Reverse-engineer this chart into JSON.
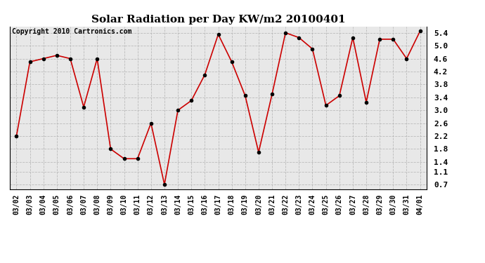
{
  "title": "Solar Radiation per Day KW/m2 20100401",
  "copyright": "Copyright 2010 Cartronics.com",
  "dates": [
    "03/02",
    "03/03",
    "03/04",
    "03/05",
    "03/06",
    "03/07",
    "03/08",
    "03/09",
    "03/10",
    "03/11",
    "03/12",
    "03/13",
    "03/14",
    "03/15",
    "03/16",
    "03/17",
    "03/18",
    "03/19",
    "03/20",
    "03/21",
    "03/22",
    "03/23",
    "03/24",
    "03/25",
    "03/26",
    "03/27",
    "03/28",
    "03/29",
    "03/30",
    "03/31",
    "04/01"
  ],
  "values": [
    2.2,
    4.5,
    4.6,
    4.7,
    4.6,
    3.1,
    4.6,
    1.8,
    1.5,
    1.5,
    2.6,
    0.7,
    3.0,
    3.3,
    4.1,
    5.35,
    4.5,
    3.45,
    1.7,
    3.5,
    5.4,
    5.25,
    4.9,
    3.15,
    3.45,
    5.25,
    3.25,
    5.2,
    5.2,
    4.6,
    5.45
  ],
  "line_color": "#cc0000",
  "marker": "o",
  "marker_color": "#000000",
  "bg_color": "#ffffff",
  "plot_bg_color": "#e8e8e8",
  "grid_color": "#b0b0b0",
  "yticks": [
    0.7,
    1.1,
    1.4,
    1.8,
    2.2,
    2.6,
    3.0,
    3.4,
    3.8,
    4.2,
    4.6,
    5.0,
    5.4
  ],
  "ylim": [
    0.55,
    5.6
  ],
  "title_fontsize": 11,
  "copyright_fontsize": 7,
  "tick_fontsize": 7,
  "ytick_fontsize": 8
}
